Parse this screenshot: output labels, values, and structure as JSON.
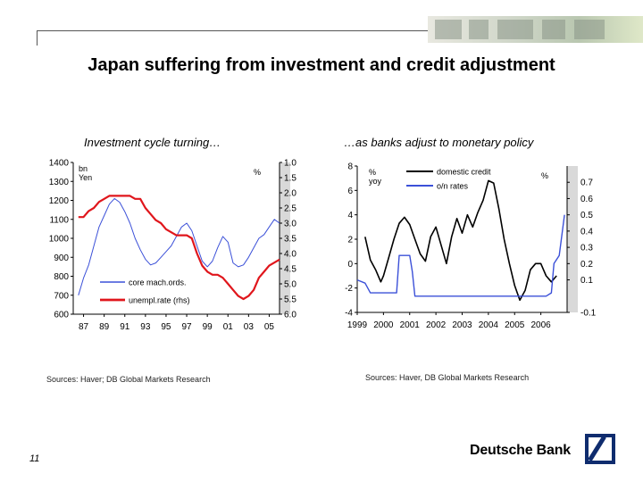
{
  "slide": {
    "title": "Japan suffering from investment and credit adjustment",
    "page_number": "11",
    "brand": "Deutsche Bank",
    "logo_icon": "deutsche-bank-slash-square-icon"
  },
  "left": {
    "subtitle": "Investment cycle turning…",
    "source": "Sources: Haver; DB Global Markets Research"
  },
  "right": {
    "subtitle": "…as banks adjust to monetary policy",
    "source": "Sources:  Haver, DB Global Markets Research"
  },
  "chart_data": [
    {
      "type": "line",
      "unit_left": "bn Yen",
      "unit_left_lines": [
        "bn",
        "Yen"
      ],
      "unit_right": "%",
      "x_range": [
        1986,
        2006
      ],
      "x_ticks": [
        "87",
        "89",
        "91",
        "93",
        "95",
        "97",
        "99",
        "01",
        "03",
        "05"
      ],
      "x_tick_values": [
        1987,
        1989,
        1991,
        1993,
        1995,
        1997,
        1999,
        2001,
        2003,
        2005
      ],
      "y_left_range": [
        600,
        1400
      ],
      "y_left_ticks": [
        "1400",
        "1300",
        "1200",
        "1100",
        "1000",
        "900",
        "800",
        "700",
        "600"
      ],
      "y_right_range": [
        6.0,
        1.0
      ],
      "y_right_inverted": true,
      "y_right_ticks": [
        "1.0",
        "1.5",
        "2.0",
        "2.5",
        "3.0",
        "3.5",
        "4.0",
        "4.5",
        "5.0",
        "5.5",
        "6.0"
      ],
      "legend_position": "bottom-left",
      "series": [
        {
          "name": "core mach.ords.",
          "axis": "left",
          "color": "#3b50d8",
          "x": [
            1986.5,
            1987,
            1987.5,
            1988,
            1988.5,
            1989,
            1989.5,
            1990,
            1990.5,
            1991,
            1991.5,
            1992,
            1992.5,
            1993,
            1993.5,
            1994,
            1994.5,
            1995,
            1995.5,
            1996,
            1996.5,
            1997,
            1997.5,
            1998,
            1998.5,
            1999,
            1999.5,
            2000,
            2000.5,
            2001,
            2001.5,
            2002,
            2002.5,
            2003,
            2003.5,
            2004,
            2004.5,
            2005,
            2005.5,
            2006
          ],
          "values": [
            700,
            790,
            860,
            960,
            1060,
            1120,
            1180,
            1210,
            1190,
            1140,
            1080,
            1000,
            940,
            890,
            860,
            870,
            900,
            930,
            960,
            1010,
            1060,
            1080,
            1040,
            960,
            880,
            850,
            880,
            950,
            1010,
            980,
            870,
            850,
            860,
            900,
            950,
            1000,
            1020,
            1060,
            1100,
            1080
          ]
        },
        {
          "name": "unempl.rate (rhs)",
          "axis": "right",
          "color": "#e0161c",
          "x": [
            1986.5,
            1987,
            1987.5,
            1988,
            1988.5,
            1989,
            1989.5,
            1990,
            1990.5,
            1991,
            1991.5,
            1992,
            1992.5,
            1993,
            1993.5,
            1994,
            1994.5,
            1995,
            1995.5,
            1996,
            1996.5,
            1997,
            1997.5,
            1998,
            1998.5,
            1999,
            1999.5,
            2000,
            2000.5,
            2001,
            2001.5,
            2002,
            2002.5,
            2003,
            2003.5,
            2004,
            2004.5,
            2005,
            2005.5,
            2006
          ],
          "values": [
            2.8,
            2.8,
            2.6,
            2.5,
            2.3,
            2.2,
            2.1,
            2.1,
            2.1,
            2.1,
            2.1,
            2.2,
            2.2,
            2.5,
            2.7,
            2.9,
            3.0,
            3.2,
            3.3,
            3.4,
            3.4,
            3.4,
            3.5,
            4.0,
            4.4,
            4.6,
            4.7,
            4.7,
            4.8,
            5.0,
            5.2,
            5.4,
            5.5,
            5.4,
            5.2,
            4.8,
            4.6,
            4.4,
            4.3,
            4.2
          ]
        }
      ]
    },
    {
      "type": "line",
      "unit_left": "% yoy",
      "unit_left_lines": [
        "%",
        "yoy"
      ],
      "unit_right": "%",
      "x_range": [
        1999,
        2007
      ],
      "x_ticks": [
        "1999",
        "2000",
        "2001",
        "2002",
        "2003",
        "2004",
        "2005",
        "2006"
      ],
      "x_tick_values": [
        1999,
        2000,
        2001,
        2002,
        2003,
        2004,
        2005,
        2006
      ],
      "y_left_range": [
        -4,
        8
      ],
      "y_left_ticks": [
        "8",
        "6",
        "4",
        "2",
        "0",
        "-2",
        "-4"
      ],
      "y_right_range": [
        -0.1,
        0.8
      ],
      "y_right_ticks": [
        "0.7",
        "0.6",
        "0.5",
        "0.4",
        "0.3",
        "0.2",
        "0.1",
        "-0.1"
      ],
      "legend_position": "top-center",
      "series": [
        {
          "name": "domestic credit",
          "axis": "left",
          "color": "#000000",
          "x": [
            1999.3,
            1999.5,
            1999.7,
            1999.9,
            2000.0,
            2000.2,
            2000.4,
            2000.6,
            2000.8,
            2001.0,
            2001.2,
            2001.4,
            2001.6,
            2001.8,
            2002.0,
            2002.2,
            2002.4,
            2002.6,
            2002.8,
            2003.0,
            2003.2,
            2003.4,
            2003.6,
            2003.8,
            2004.0,
            2004.2,
            2004.4,
            2004.6,
            2004.8,
            2005.0,
            2005.2,
            2005.4,
            2005.6,
            2005.8,
            2006.0,
            2006.2,
            2006.4,
            2006.6
          ],
          "values": [
            2.2,
            0.3,
            -0.5,
            -1.5,
            -1.0,
            0.5,
            2.0,
            3.3,
            3.8,
            3.2,
            2.0,
            0.8,
            0.2,
            2.2,
            3.0,
            1.5,
            0.0,
            2.2,
            3.7,
            2.5,
            4.0,
            3.0,
            4.2,
            5.2,
            6.8,
            6.6,
            4.5,
            2.0,
            0.0,
            -1.8,
            -3.0,
            -2.2,
            -0.5,
            0.0,
            0.0,
            -1.0,
            -1.5,
            -1.0
          ]
        },
        {
          "name": "o/n rates",
          "axis": "right",
          "color": "#3b50d8",
          "x": [
            1999.0,
            1999.3,
            1999.5,
            2000.0,
            2000.3,
            2000.5,
            2000.6,
            2000.9,
            2001.0,
            2001.1,
            2001.2,
            2001.5,
            2002.0,
            2003.0,
            2004.0,
            2005.0,
            2006.0,
            2006.2,
            2006.4,
            2006.5,
            2006.7,
            2006.9
          ],
          "values": [
            0.1,
            0.08,
            0.02,
            0.02,
            0.02,
            0.02,
            0.25,
            0.25,
            0.25,
            0.15,
            0.0,
            0.0,
            0.0,
            0.0,
            0.0,
            0.0,
            0.0,
            0.0,
            0.02,
            0.2,
            0.25,
            0.5
          ]
        }
      ]
    }
  ]
}
